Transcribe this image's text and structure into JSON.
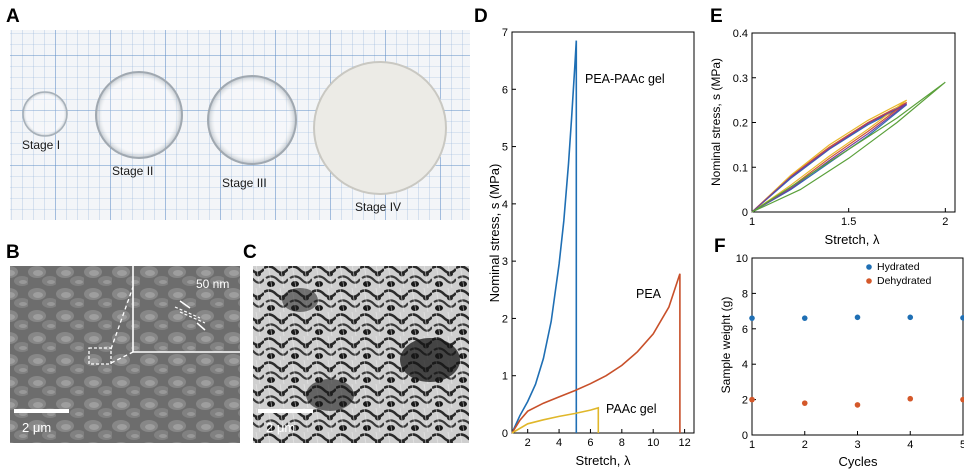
{
  "panels": {
    "A": "A",
    "B": "B",
    "C": "C",
    "D": "D",
    "E": "E",
    "F": "F"
  },
  "photo_a": {
    "stage_labels": [
      "Stage I",
      "Stage II",
      "Stage III",
      "Stage IV"
    ]
  },
  "sem_b": {
    "scale_bar": "2 μm",
    "inset_label": "50 nm"
  },
  "sem_c": {
    "scale_bar": "2 μm"
  },
  "chart_data": [
    {
      "panel": "D",
      "type": "line",
      "xlabel": "Stretch, λ",
      "ylabel": "Nominal stress, s (MPa)",
      "xlim": [
        1,
        12.6
      ],
      "ylim": [
        0,
        7
      ],
      "xticks": [
        2,
        4,
        6,
        8,
        10,
        12
      ],
      "yticks": [
        0,
        1,
        2,
        3,
        4,
        5,
        6,
        7
      ],
      "series": [
        {
          "name": "PEA-PAAc gel",
          "color": "#1f6fb4",
          "x": [
            1,
            1.5,
            2,
            2.5,
            3,
            3.5,
            4,
            4.3,
            4.6,
            4.8,
            5.0,
            5.1,
            5.1
          ],
          "y": [
            0,
            0.3,
            0.55,
            0.85,
            1.3,
            1.95,
            2.95,
            3.7,
            4.7,
            5.5,
            6.4,
            6.85,
            0
          ]
        },
        {
          "name": "PEA",
          "color": "#c8502a",
          "x": [
            1,
            1.5,
            2,
            3,
            4,
            5,
            6,
            7,
            8,
            9,
            10,
            11,
            11.7,
            11.7
          ],
          "y": [
            0,
            0.22,
            0.38,
            0.52,
            0.63,
            0.74,
            0.86,
            1.0,
            1.18,
            1.42,
            1.73,
            2.2,
            2.78,
            0
          ]
        },
        {
          "name": "PAAc gel",
          "color": "#e0b72a",
          "x": [
            1,
            2,
            3,
            4,
            5,
            6,
            6.5,
            6.5
          ],
          "y": [
            0,
            0.16,
            0.23,
            0.29,
            0.34,
            0.4,
            0.44,
            0
          ]
        }
      ]
    },
    {
      "panel": "E",
      "type": "line",
      "xlabel": "Stretch, λ",
      "ylabel": "Nominal stress, s (MPa)",
      "xlim": [
        1,
        2.05
      ],
      "ylim": [
        0,
        0.4
      ],
      "xticks": [
        1,
        1.5,
        2
      ],
      "yticks": [
        0,
        0.1,
        0.2,
        0.3,
        0.4
      ],
      "series": [
        {
          "color": "#2d6db5",
          "x": [
            1,
            1.2,
            1.4,
            1.6,
            1.8,
            1.6,
            1.4,
            1.2,
            1
          ],
          "y": [
            0,
            0.075,
            0.14,
            0.195,
            0.24,
            0.17,
            0.11,
            0.05,
            0
          ]
        },
        {
          "color": "#d4582a",
          "x": [
            1,
            1.2,
            1.4,
            1.6,
            1.8,
            1.6,
            1.4,
            1.2,
            1
          ],
          "y": [
            0,
            0.08,
            0.145,
            0.2,
            0.245,
            0.18,
            0.12,
            0.055,
            0
          ]
        },
        {
          "color": "#e8b82a",
          "x": [
            1,
            1.2,
            1.4,
            1.6,
            1.8,
            1.6,
            1.4,
            1.2,
            1
          ],
          "y": [
            0,
            0.082,
            0.15,
            0.205,
            0.25,
            0.185,
            0.125,
            0.06,
            0
          ]
        },
        {
          "color": "#7a3a9a",
          "x": [
            1,
            1.2,
            1.4,
            1.6,
            1.8,
            1.6,
            1.4,
            1.2,
            1
          ],
          "y": [
            0,
            0.078,
            0.142,
            0.198,
            0.242,
            0.175,
            0.115,
            0.052,
            0
          ]
        },
        {
          "color": "#5aa03a",
          "x": [
            1,
            1.25,
            1.5,
            1.75,
            2.0,
            1.75,
            1.5,
            1.25,
            1
          ],
          "y": [
            0,
            0.07,
            0.14,
            0.21,
            0.29,
            0.2,
            0.12,
            0.05,
            0
          ]
        }
      ]
    },
    {
      "panel": "F",
      "type": "scatter",
      "xlabel": "Cycles",
      "ylabel": "Sample weight (g)",
      "xlim": [
        1,
        5
      ],
      "ylim": [
        0,
        10
      ],
      "xticks": [
        1,
        2,
        3,
        4,
        5
      ],
      "yticks": [
        0,
        2,
        4,
        6,
        8,
        10
      ],
      "legend_position": "top-right",
      "series": [
        {
          "name": "Hydrated",
          "color": "#1f6fb4",
          "x": [
            1,
            2,
            3,
            4,
            5
          ],
          "y": [
            6.6,
            6.6,
            6.65,
            6.65,
            6.62
          ]
        },
        {
          "name": "Dehydrated",
          "color": "#d4582a",
          "x": [
            1,
            2,
            3,
            4,
            5
          ],
          "y": [
            2.0,
            1.8,
            1.7,
            2.05,
            2.0
          ]
        }
      ]
    }
  ]
}
